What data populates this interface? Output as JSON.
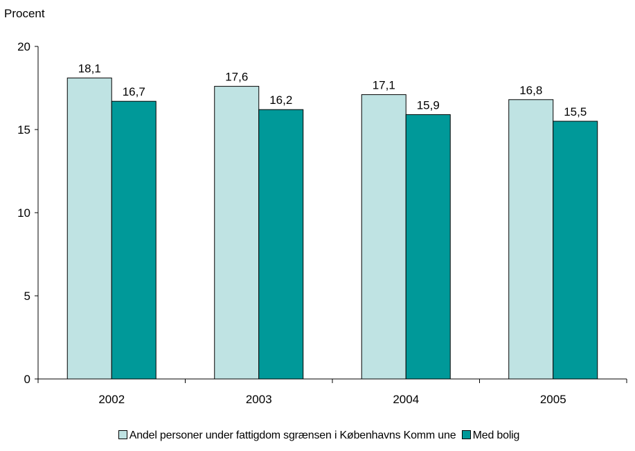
{
  "chart_data": {
    "type": "bar",
    "ylabel": "Procent",
    "ylim": [
      0,
      20
    ],
    "yticks": [
      0,
      5,
      10,
      15,
      20
    ],
    "categories": [
      "2002",
      "2003",
      "2004",
      "2005"
    ],
    "series": [
      {
        "name": "Andel personer under fattigdom sgrænsen i Københavns Komm une",
        "color": "#bfe3e3",
        "values": [
          18.1,
          17.6,
          17.1,
          16.8
        ],
        "labels": [
          "18,1",
          "17,6",
          "17,1",
          "16,8"
        ]
      },
      {
        "name": "Med bolig",
        "color": "#009999",
        "values": [
          16.7,
          16.2,
          15.9,
          15.5
        ],
        "labels": [
          "16,7",
          "16,2",
          "15,9",
          "15,5"
        ]
      }
    ],
    "grid": false,
    "legend_position": "bottom"
  }
}
